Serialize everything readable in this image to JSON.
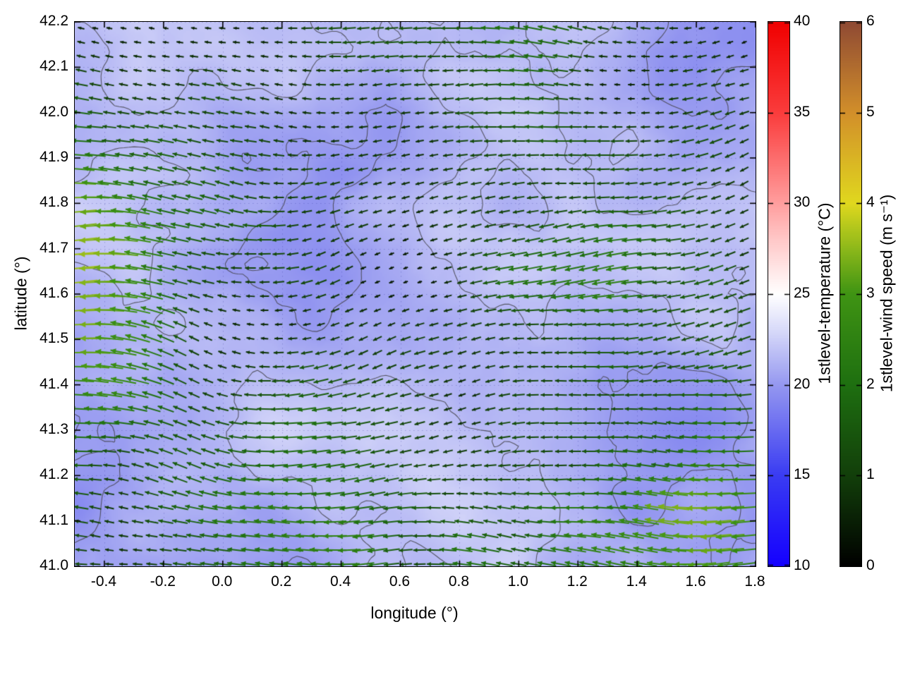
{
  "figure": {
    "background": "#ffffff",
    "kind": "meteorological map: first-model-level temperature shading with temperature contours and wind vectors colored by wind speed"
  },
  "chart_data": {
    "type": "heatmap",
    "title": "",
    "xlabel": "longitude (°)",
    "ylabel": "latitude (°)",
    "xlim": [
      -0.5,
      1.8
    ],
    "ylim": [
      41.0,
      42.2
    ],
    "xticks": [
      -0.4,
      -0.2,
      0.0,
      0.2,
      0.4,
      0.6,
      0.8,
      1.0,
      1.2,
      1.4,
      1.6,
      1.8
    ],
    "xtick_labels": [
      "-0.4",
      "-0.2",
      "0.0",
      "0.2",
      "0.4",
      "0.6",
      "0.8",
      "1.0",
      "1.2",
      "1.4",
      "1.6",
      "1.8"
    ],
    "yticks": [
      41.0,
      41.1,
      41.2,
      41.3,
      41.4,
      41.5,
      41.6,
      41.7,
      41.8,
      41.9,
      42.0,
      42.1,
      42.2
    ],
    "ytick_labels": [
      "41.0",
      "41.1",
      "41.2",
      "41.3",
      "41.4",
      "41.5",
      "41.6",
      "41.7",
      "41.8",
      "41.9",
      "42.0",
      "42.1",
      "42.2"
    ],
    "grid": "dotted",
    "contour_levels": [
      18.8,
      20.2,
      21.6
    ],
    "layers": [
      {
        "name": "temperature-field",
        "type": "heatmap",
        "variable": "1stlevel-temperature",
        "units": "°C",
        "value_range_shown": [
          17,
          24
        ]
      },
      {
        "name": "temperature-contours",
        "type": "contour",
        "color": "#44444a"
      },
      {
        "name": "wind-vectors",
        "type": "quiver",
        "variable": "1stlevel-wind speed",
        "units": "m s⁻¹",
        "speed_range_shown": [
          0,
          4.3
        ],
        "dominant_direction": "arrows point westward (leftward), strongest yellow vectors near the western edge and south-central area, weakest (near-zero black dots) over the east and northeast"
      }
    ],
    "colorbars": [
      {
        "id": "temperature",
        "label": "1stlevel-temperature (°C)",
        "min": 10,
        "max": 40,
        "ticks": [
          10,
          15,
          20,
          25,
          30,
          35,
          40
        ],
        "tick_labels": [
          "10",
          "15",
          "20",
          "25",
          "30",
          "35",
          "40"
        ],
        "gradient": [
          {
            "t": 0.0,
            "color": "#1400ff"
          },
          {
            "t": 0.1667,
            "color": "#3a3cf2"
          },
          {
            "t": 0.3333,
            "color": "#9598f0"
          },
          {
            "t": 0.4333,
            "color": "#d8daf9"
          },
          {
            "t": 0.5,
            "color": "#ffffff"
          },
          {
            "t": 0.6,
            "color": "#ffc8c8"
          },
          {
            "t": 0.6667,
            "color": "#ff9e9e"
          },
          {
            "t": 0.8333,
            "color": "#fa3c3c"
          },
          {
            "t": 1.0,
            "color": "#f00000"
          }
        ]
      },
      {
        "id": "wind-speed",
        "label": "1stlevel-wind speed (m s⁻¹)",
        "min": 0,
        "max": 6,
        "ticks": [
          0,
          1,
          2,
          3,
          4,
          5,
          6
        ],
        "tick_labels": [
          "0",
          "1",
          "2",
          "3",
          "4",
          "5",
          "6"
        ],
        "gradient": [
          {
            "t": 0.0,
            "color": "#000000"
          },
          {
            "t": 0.1667,
            "color": "#123f0a"
          },
          {
            "t": 0.3333,
            "color": "#1e6f10"
          },
          {
            "t": 0.5,
            "color": "#3f9413"
          },
          {
            "t": 0.5833,
            "color": "#8cb81a"
          },
          {
            "t": 0.6667,
            "color": "#e0d81e"
          },
          {
            "t": 0.8333,
            "color": "#d28f2a"
          },
          {
            "t": 1.0,
            "color": "#8f4a33"
          }
        ]
      }
    ],
    "field_summary": {
      "temperature_range_shown": [
        17,
        24
      ],
      "wind_speed_range_shown": [
        0,
        4.3
      ],
      "dominant_wind_direction": "easterly flow (vectors point toward the west / left)"
    }
  }
}
